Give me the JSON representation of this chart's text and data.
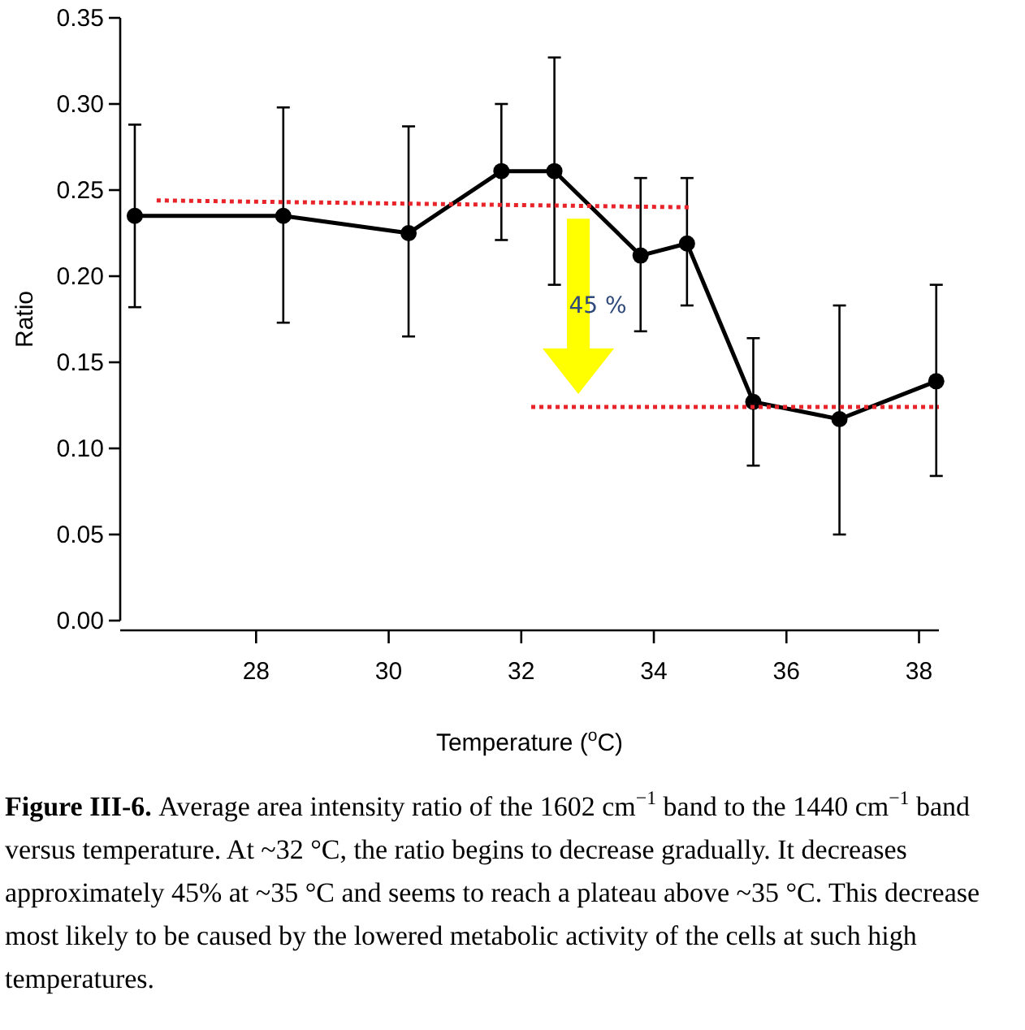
{
  "chart_data": {
    "type": "line",
    "xlabel": "Temperature ($^{o}$C)",
    "ylabel": "Ratio",
    "xlim": [
      25.95,
      38.3
    ],
    "xticks": [
      28,
      30,
      32,
      34,
      36,
      38
    ],
    "ylim": [
      0,
      0.35
    ],
    "yticks": [
      {
        "value": 0,
        "label": "0.00"
      },
      {
        "value": 0.05,
        "label": "0.05"
      },
      {
        "value": 0.1,
        "label": "0.10"
      },
      {
        "value": 0.15,
        "label": "0.15"
      },
      {
        "value": 0.2,
        "label": "0.20"
      },
      {
        "value": 0.25,
        "label": "0.25"
      },
      {
        "value": 0.3,
        "label": "0.30"
      },
      {
        "value": 0.35,
        "label": "0.35"
      }
    ],
    "grid": false,
    "series": [
      {
        "color": "#000000",
        "marker": "circle",
        "line_style": "solid",
        "x": [
          26.17,
          28.41,
          30.3,
          31.7,
          32.5,
          33.8,
          34.5,
          35.5,
          36.8,
          38.26
        ],
        "values": [
          0.235,
          0.235,
          0.225,
          0.261,
          0.261,
          0.212,
          0.219,
          0.127,
          0.117,
          0.139
        ],
        "errors": [
          [
            0.182,
            0.288
          ],
          [
            0.173,
            0.298
          ],
          [
            0.165,
            0.287
          ],
          [
            0.221,
            0.3
          ],
          [
            0.195,
            0.327
          ],
          [
            0.168,
            0.257
          ],
          [
            0.183,
            0.257
          ],
          [
            0.09,
            0.164
          ],
          [
            0.05,
            0.183
          ],
          [
            0.084,
            0.195
          ]
        ]
      },
      {
        "color": "#e8242a",
        "marker": "none",
        "line_style": "dotted",
        "x": [
          26.5,
          34.55
        ],
        "values": [
          0.244,
          0.24
        ]
      },
      {
        "color": "#e8242a",
        "marker": "none",
        "line_style": "dotted",
        "x": [
          32.15,
          38.3
        ],
        "values": [
          0.124,
          0.124
        ]
      }
    ],
    "annotations": [
      "45 %",
      "Figure III-6.",
      "Average area intensity ratio of the 1602 cm$^{−1}$ band to the 1440 cm$^{−1}$ band versus temperature. At ~32 °C, the ratio begins to decrease gradually. It decreases approximately 45% at ~35 °C and seems to reach a plateau above ~35 °C. This decrease most likely to be caused by the lowered metabolic activity of the cells at such high temperatures."
    ]
  }
}
